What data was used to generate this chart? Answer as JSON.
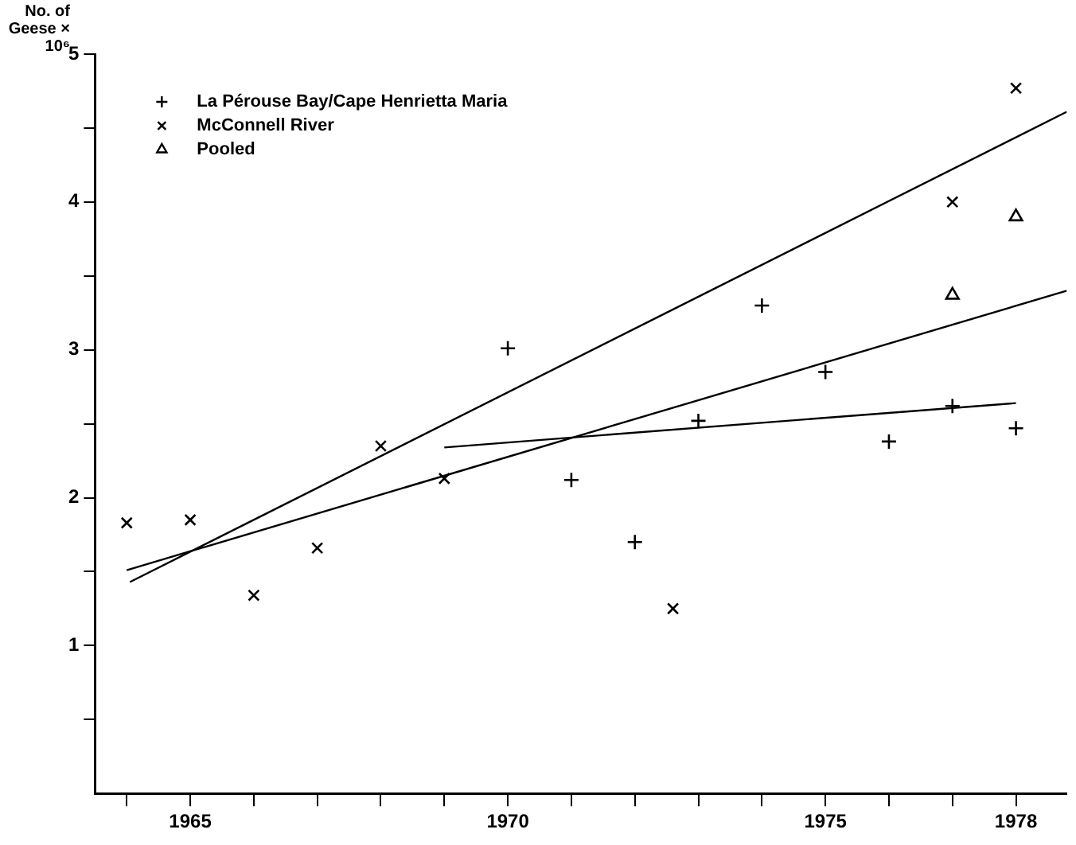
{
  "chart_data": {
    "type": "scatter",
    "ylabel": "No. of Geese × 10⁶",
    "legend": "top left",
    "xlim": [
      1963.5,
      1978.8
    ],
    "ylim": [
      0,
      5
    ],
    "xticks": [
      {
        "value": 1964,
        "label": null
      },
      1965,
      {
        "value": 1966,
        "label": null
      },
      {
        "value": 1967,
        "label": null
      },
      {
        "value": 1968,
        "label": null
      },
      {
        "value": 1969,
        "label": null
      },
      1970,
      {
        "value": 1971,
        "label": null
      },
      {
        "value": 1972,
        "label": null
      },
      {
        "value": 1973,
        "label": null
      },
      {
        "value": 1974,
        "label": null
      },
      1975,
      {
        "value": 1976,
        "label": null
      },
      {
        "value": 1977,
        "label": null
      },
      1978
    ],
    "yticks": [
      {
        "value": 0.5,
        "label": null
      },
      1,
      {
        "value": 1.5,
        "label": null
      },
      2,
      {
        "value": 2.5,
        "label": null
      },
      3,
      {
        "value": 3.5,
        "label": null
      },
      4,
      {
        "value": 4.5,
        "label": null
      },
      5
    ],
    "grid": false,
    "series": [
      {
        "name": "La Pérouse Bay/Cape Henrietta Maria",
        "color": "#000000",
        "marker": "cross",
        "x": [
          1970,
          1971,
          1972,
          1973,
          1974,
          1975,
          1976,
          1977,
          1978
        ],
        "values": [
          3.01,
          2.12,
          1.7,
          2.52,
          3.3,
          2.85,
          2.38,
          2.62,
          2.47
        ]
      },
      {
        "name": "McConnell River",
        "color": "#000000",
        "marker": "x",
        "x": [
          1964,
          1965,
          1966,
          1967,
          1968,
          1969,
          1972.6,
          1977,
          1978
        ],
        "values": [
          1.83,
          1.85,
          1.34,
          1.66,
          2.35,
          2.13,
          1.25,
          4.0,
          4.77
        ]
      },
      {
        "name": "Pooled",
        "color": "#000000",
        "marker": "triangle",
        "x": [
          1977,
          1978
        ],
        "values": [
          3.37,
          3.9
        ]
      },
      {
        "type": "line",
        "color": "#000000",
        "marker": "none",
        "x": [
          1969,
          1978
        ],
        "values": [
          2.34,
          2.64
        ]
      },
      {
        "type": "line",
        "color": "#000000",
        "marker": "none",
        "x": [
          1964,
          1978.8
        ],
        "values": [
          1.51,
          3.4
        ]
      },
      {
        "type": "line",
        "color": "#000000",
        "marker": "none",
        "x": [
          1964.05,
          1978.8
        ],
        "values": [
          1.43,
          4.61
        ]
      }
    ]
  }
}
